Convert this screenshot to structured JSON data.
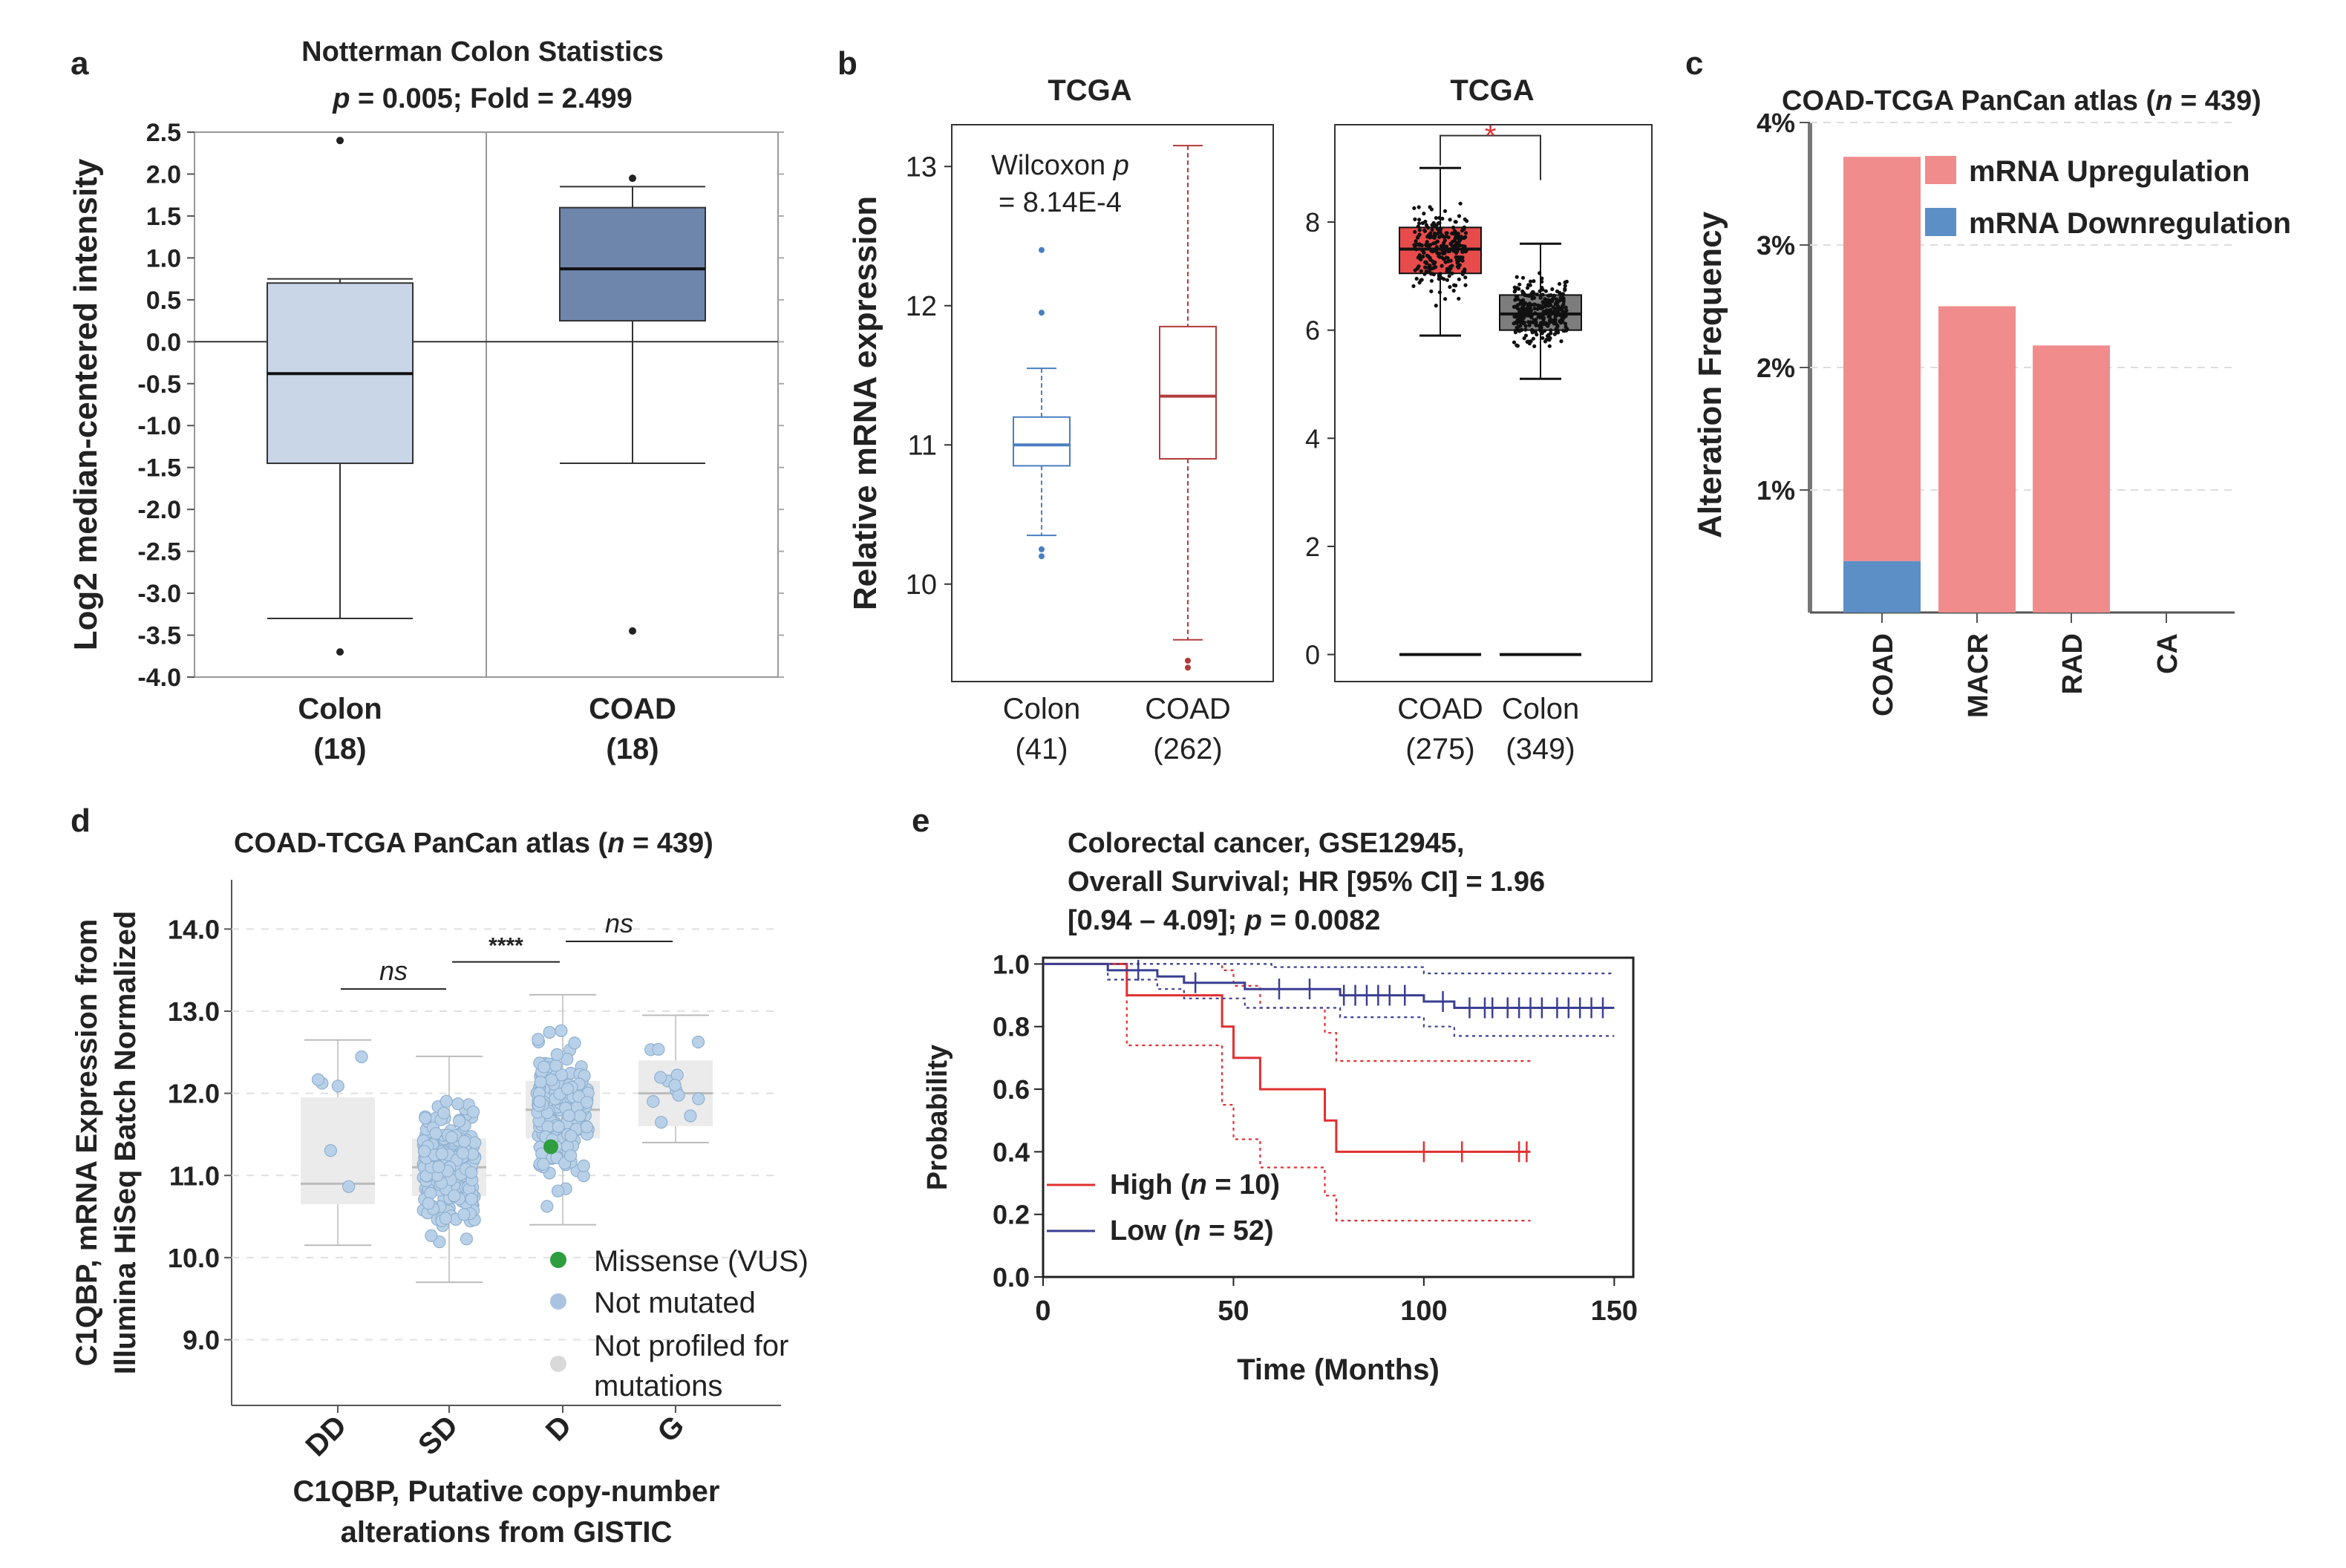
{
  "panel_labels": [
    "a",
    "b",
    "c",
    "d",
    "e"
  ],
  "chart_data": [
    {
      "panel": "a",
      "type": "box",
      "title": "Notterman Colon Statistics",
      "subtitle_p": "p",
      "subtitle_rest": " = 0.005; Fold = 2.499",
      "ylabel": "Log2 median-centered intensity",
      "ylim": [
        -4.0,
        2.5
      ],
      "yticks": [
        "2.5",
        "2.0",
        "1.5",
        "1.0",
        "0.5",
        "0.0",
        "-0.5",
        "-1.0",
        "-1.5",
        "-2.0",
        "-2.5",
        "-3.0",
        "-3.5",
        "-4.0"
      ],
      "ytick_values": [
        2.5,
        2.0,
        1.5,
        1.0,
        0.5,
        0.0,
        -0.5,
        -1.0,
        -1.5,
        -2.0,
        -2.5,
        -3.0,
        -3.5,
        -4.0
      ],
      "groups": [
        {
          "name": "Colon",
          "n": "(18)",
          "min": -3.3,
          "q1": -1.45,
          "median": -0.38,
          "q3": 0.7,
          "max": 0.75,
          "outliers": [
            2.4,
            -3.7
          ],
          "color": "#c9d6e8"
        },
        {
          "name": "COAD",
          "n": "(18)",
          "min": -1.45,
          "q1": 0.25,
          "median": 0.87,
          "q3": 1.6,
          "max": 1.85,
          "outliers": [
            1.95,
            -3.45
          ],
          "color": "#6f86ac"
        }
      ]
    },
    {
      "panel": "b1",
      "type": "box",
      "title": "TCGA",
      "annotation_line1_text": "Wilcoxon ",
      "annotation_line1_p": "p",
      "annotation_line2": "= 8.14E-4",
      "ylabel": "Relative mRNA expression",
      "ylim": [
        9.3,
        13.3
      ],
      "yticks": [
        "13",
        "12",
        "11",
        "10"
      ],
      "ytick_values": [
        13,
        12,
        11,
        10
      ],
      "groups": [
        {
          "name": "Colon",
          "n": "(41)",
          "min": 10.35,
          "q1": 10.85,
          "median": 11.0,
          "q3": 11.2,
          "max": 11.55,
          "outliers": [
            12.4,
            11.95,
            10.25,
            10.2
          ],
          "color": "#4a7fc1"
        },
        {
          "name": "COAD",
          "n": "(262)",
          "min": 9.6,
          "q1": 10.9,
          "median": 11.35,
          "q3": 11.85,
          "max": 13.15,
          "outliers": [
            9.45,
            9.4
          ],
          "color": "#b33a3a"
        }
      ]
    },
    {
      "panel": "b2",
      "type": "box",
      "title": "TCGA",
      "significance": "*",
      "ylim": [
        -0.5,
        9.8
      ],
      "yticks": [
        "8",
        "6",
        "4",
        "2",
        "0"
      ],
      "ytick_values": [
        8,
        6,
        4,
        2,
        0
      ],
      "groups": [
        {
          "name": "COAD",
          "n": "(275)",
          "min": 5.9,
          "q1": 7.05,
          "median": 7.5,
          "q3": 7.9,
          "max": 9.0,
          "spread_min": 5.6,
          "spread_max": 9.1,
          "color": "#e84b4b"
        },
        {
          "name": "Colon",
          "n": "(349)",
          "min": 5.1,
          "q1": 6.0,
          "median": 6.3,
          "q3": 6.65,
          "max": 7.6,
          "spread_min": 4.3,
          "spread_max": 8.3,
          "color": "#7d7d7d"
        }
      ]
    },
    {
      "panel": "c",
      "type": "stacked_bar",
      "title_pre": "COAD-TCGA PanCan atlas (",
      "title_n": "n",
      "title_post": " = 439)",
      "ylabel": "Alteration Frequency",
      "ylim": [
        0,
        4
      ],
      "yticks": [
        "4%",
        "3%",
        "2%",
        "1%"
      ],
      "ytick_values": [
        4,
        3,
        2,
        1
      ],
      "categories": [
        "COAD",
        "MACR",
        "RAD",
        "CA"
      ],
      "series": [
        {
          "name": "mRNA Upregulation",
          "color": "#f08c8c",
          "values": [
            3.3,
            2.5,
            2.18,
            0
          ]
        },
        {
          "name": "mRNA Downregulation",
          "color": "#5b8fc6",
          "values": [
            0.42,
            0,
            0,
            0
          ]
        }
      ]
    },
    {
      "panel": "d",
      "type": "box_strip",
      "title_pre": "COAD-TCGA PanCan atlas (",
      "title_n": "n",
      "title_post": " = 439)",
      "ylabel_line1": "C1QBP, mRNA Expression from",
      "ylabel_line2": "Illumina HiSeq Batch Normalized",
      "xlabel_line1": "C1QBP, Putative copy-number",
      "xlabel_line2": "alterations from GISTIC",
      "ylim": [
        8.2,
        14.6
      ],
      "yticks": [
        "14.0",
        "13.0",
        "12.0",
        "11.0",
        "10.0",
        "9.0"
      ],
      "ytick_values": [
        14,
        13,
        12,
        11,
        10,
        9
      ],
      "categories": [
        "DD",
        "SD",
        "D",
        "G"
      ],
      "groups": [
        {
          "name": "DD",
          "n_points": 6,
          "min": 10.15,
          "q1": 10.65,
          "median": 10.9,
          "q3": 11.95,
          "max": 12.65
        },
        {
          "name": "SD",
          "n_points": 240,
          "min": 9.7,
          "q1": 10.75,
          "median": 11.1,
          "q3": 11.45,
          "max": 12.45
        },
        {
          "name": "D",
          "n_points": 180,
          "min": 10.4,
          "q1": 11.45,
          "median": 11.8,
          "q3": 12.15,
          "max": 13.2
        },
        {
          "name": "G",
          "n_points": 13,
          "min": 11.4,
          "q1": 11.6,
          "median": 12.0,
          "q3": 12.4,
          "max": 12.95
        }
      ],
      "comparisons": [
        {
          "from": "DD",
          "to": "SD",
          "label": "ns"
        },
        {
          "from": "SD",
          "to": "D",
          "label": "****"
        },
        {
          "from": "D",
          "to": "G",
          "label": "ns"
        }
      ],
      "legend": [
        {
          "label": "Missense (VUS)",
          "color": "#2e9e3e"
        },
        {
          "label": "Not mutated",
          "color": "#a9c4e0"
        },
        {
          "label_line1": "Not profiled for",
          "label_line2": "mutations",
          "color": "#d9d9d9"
        }
      ]
    },
    {
      "panel": "e",
      "type": "survival",
      "title_line1": "Colorectal cancer, GSE12945,",
      "title_line2": "Overall Survival; HR [95% CI] = 1.96",
      "title_line3_pre": "[0.94 – 4.09]; ",
      "title_line3_p": "p",
      "title_line3_post": " = 0.0082",
      "xlabel": "Time (Months)",
      "ylabel": "Probability",
      "xlim": [
        0,
        155
      ],
      "ylim": [
        0,
        1.02
      ],
      "xticks": [
        "0",
        "50",
        "100",
        "150"
      ],
      "xtick_values": [
        0,
        50,
        100,
        150
      ],
      "yticks": [
        "1.0",
        "0.8",
        "0.6",
        "0.4",
        "0.2",
        "0.0"
      ],
      "ytick_values": [
        1.0,
        0.8,
        0.6,
        0.4,
        0.2,
        0.0
      ],
      "series": [
        {
          "name_pre": "High (",
          "name_n": "n",
          "name_post": " = 10)",
          "color": "#e03030",
          "steps": [
            [
              0,
              1.0
            ],
            [
              22,
              1.0
            ],
            [
              22,
              0.9
            ],
            [
              47,
              0.9
            ],
            [
              47,
              0.8
            ],
            [
              50,
              0.8
            ],
            [
              50,
              0.7
            ],
            [
              57,
              0.7
            ],
            [
              57,
              0.6
            ],
            [
              74,
              0.6
            ],
            [
              74,
              0.5
            ],
            [
              77,
              0.5
            ],
            [
              77,
              0.4
            ],
            [
              128,
              0.4
            ]
          ],
          "ci_upper": [
            [
              0,
              1.0
            ],
            [
              47,
              1.0
            ],
            [
              47,
              0.98
            ],
            [
              50,
              0.98
            ],
            [
              50,
              0.93
            ],
            [
              57,
              0.93
            ],
            [
              57,
              0.86
            ],
            [
              74,
              0.86
            ],
            [
              74,
              0.78
            ],
            [
              77,
              0.78
            ],
            [
              77,
              0.69
            ],
            [
              128,
              0.69
            ]
          ],
          "ci_lower": [
            [
              0,
              1.0
            ],
            [
              22,
              1.0
            ],
            [
              22,
              0.74
            ],
            [
              47,
              0.74
            ],
            [
              47,
              0.55
            ],
            [
              50,
              0.55
            ],
            [
              50,
              0.44
            ],
            [
              57,
              0.44
            ],
            [
              57,
              0.35
            ],
            [
              74,
              0.35
            ],
            [
              74,
              0.26
            ],
            [
              77,
              0.26
            ],
            [
              77,
              0.18
            ],
            [
              128,
              0.18
            ]
          ],
          "censor_times": [
            100,
            110,
            125,
            127
          ]
        },
        {
          "name_pre": "Low (",
          "name_n": "n",
          "name_post": " = 52)",
          "color": "#3a3f92",
          "steps": [
            [
              0,
              1.0
            ],
            [
              17,
              1.0
            ],
            [
              17,
              0.98
            ],
            [
              30,
              0.98
            ],
            [
              30,
              0.96
            ],
            [
              37,
              0.96
            ],
            [
              37,
              0.94
            ],
            [
              53,
              0.94
            ],
            [
              53,
              0.92
            ],
            [
              78,
              0.92
            ],
            [
              78,
              0.9
            ],
            [
              100,
              0.9
            ],
            [
              100,
              0.88
            ],
            [
              108,
              0.88
            ],
            [
              108,
              0.86
            ],
            [
              150,
              0.86
            ]
          ],
          "ci_upper": [
            [
              0,
              1.0
            ],
            [
              60,
              1.0
            ],
            [
              60,
              0.99
            ],
            [
              100,
              0.99
            ],
            [
              100,
              0.97
            ],
            [
              150,
              0.97
            ]
          ],
          "ci_lower": [
            [
              0,
              1.0
            ],
            [
              17,
              1.0
            ],
            [
              17,
              0.95
            ],
            [
              30,
              0.95
            ],
            [
              30,
              0.92
            ],
            [
              37,
              0.92
            ],
            [
              37,
              0.89
            ],
            [
              53,
              0.89
            ],
            [
              53,
              0.86
            ],
            [
              78,
              0.86
            ],
            [
              78,
              0.83
            ],
            [
              100,
              0.83
            ],
            [
              100,
              0.8
            ],
            [
              108,
              0.8
            ],
            [
              108,
              0.77
            ],
            [
              150,
              0.77
            ]
          ],
          "censor_times": [
            25,
            40,
            62,
            70,
            79,
            82,
            85,
            88,
            91,
            95,
            105,
            112,
            116,
            118,
            122,
            125,
            128,
            131,
            135,
            138,
            141,
            144,
            147
          ]
        }
      ]
    }
  ]
}
